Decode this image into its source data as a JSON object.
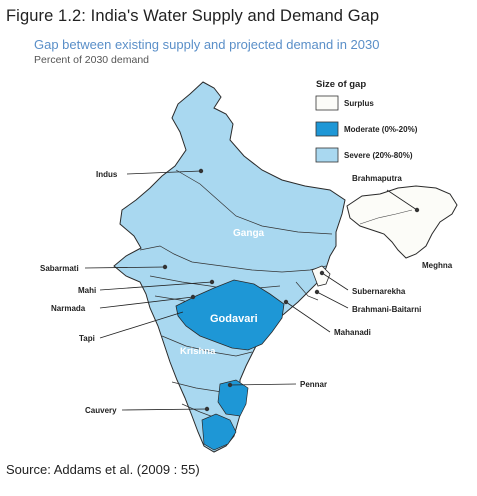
{
  "figure_title": "Figure 1.2: India's Water Supply and Demand Gap",
  "map_title": "Gap between existing supply and projected demand in 2030",
  "map_subtitle": "Percent of 2030 demand",
  "legend": {
    "title": "Size of gap",
    "items": [
      {
        "label": "Surplus",
        "color": "#fcfcf8"
      },
      {
        "label": "Moderate (0%-20%)",
        "color": "#1e97d6"
      },
      {
        "label": "Severe (20%-80%)",
        "color": "#a9d8f0"
      }
    ]
  },
  "basin_labels": {
    "ganga": "Ganga",
    "godavari": "Godavari",
    "krishna": "Krishna"
  },
  "callouts": {
    "indus": "Indus",
    "brahmaputra": "Brahmaputra",
    "meghna": "Meghna",
    "sabarmati": "Sabarmati",
    "mahi": "Mahi",
    "narmada": "Narmada",
    "tapi": "Tapi",
    "subernarekha": "Subernarekha",
    "brahmani": "Brahmani-Baitarni",
    "mahanadi": "Mahanadi",
    "pennar": "Pennar",
    "cauvery": "Cauvery"
  },
  "source": "Source: Addams et al. (2009 : 55)"
}
